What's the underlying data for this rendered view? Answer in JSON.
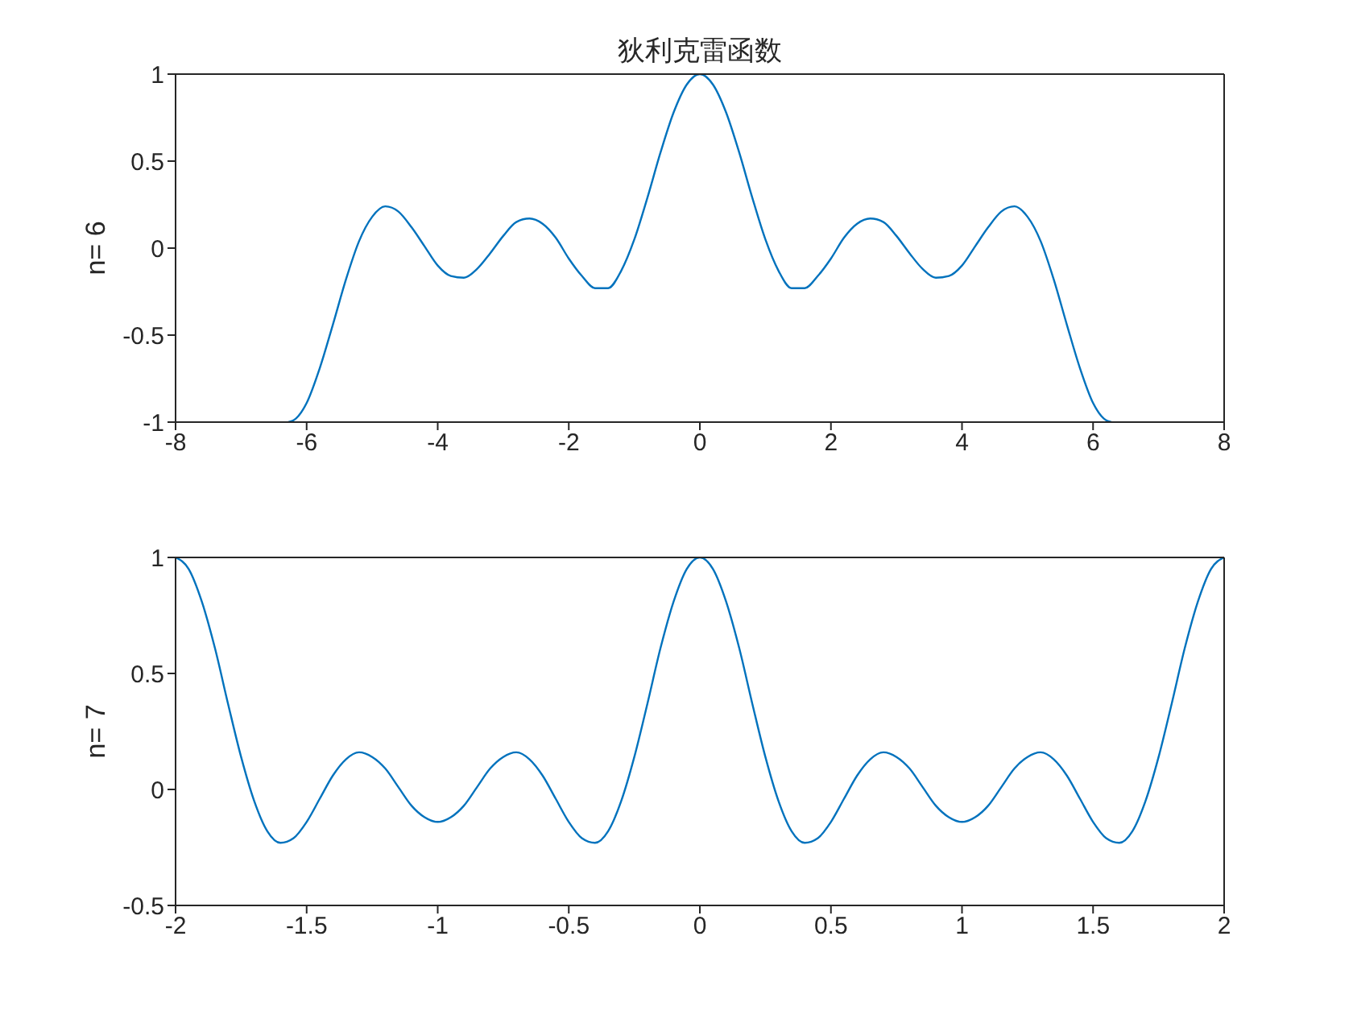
{
  "chart_data": [
    {
      "type": "line",
      "title": "狄利克雷函数",
      "ylabel": "n= 6",
      "grid": false,
      "legend": false,
      "marker": "none",
      "line_style": "solid",
      "xlim": [
        -8,
        8
      ],
      "xticks": [
        -8,
        -6,
        -4,
        -2,
        0,
        2,
        4,
        6,
        8
      ],
      "ylim": [
        -1,
        1
      ],
      "yticks": [
        -1,
        -0.5,
        0,
        0.5,
        1
      ],
      "x": [
        -6.28,
        -6.2,
        -6.0,
        -5.8,
        -5.6,
        -5.4,
        -5.2,
        -5.0,
        -4.8,
        -4.6,
        -4.4,
        -4.2,
        -4.0,
        -3.8,
        -3.6,
        -3.4,
        -3.2,
        -3.0,
        -2.8,
        -2.6,
        -2.4,
        -2.2,
        -2.0,
        -1.8,
        -1.6,
        -1.4,
        -1.2,
        -1.0,
        -0.8,
        -0.6,
        -0.4,
        -0.2,
        0,
        0.2,
        0.4,
        0.6,
        0.8,
        1.0,
        1.2,
        1.4,
        1.6,
        1.8,
        2.0,
        2.2,
        2.4,
        2.6,
        2.8,
        3.0,
        3.2,
        3.4,
        3.6,
        3.8,
        4.0,
        4.2,
        4.4,
        4.6,
        4.8,
        5.0,
        5.2,
        5.4,
        5.6,
        5.8,
        6.0,
        6.2,
        6.28
      ],
      "series": [
        {
          "color": "#0072bd",
          "values": [
            -1,
            -0.99,
            -0.89,
            -0.69,
            -0.44,
            -0.18,
            0.04,
            0.18,
            0.24,
            0.21,
            0.12,
            0.01,
            -0.1,
            -0.16,
            -0.17,
            -0.12,
            -0.03,
            0.07,
            0.15,
            0.17,
            0.14,
            0.06,
            -0.06,
            -0.16,
            -0.23,
            -0.23,
            -0.13,
            0.05,
            0.29,
            0.55,
            0.78,
            0.94,
            1,
            0.94,
            0.78,
            0.55,
            0.29,
            0.05,
            -0.13,
            -0.23,
            -0.23,
            -0.16,
            -0.06,
            0.06,
            0.14,
            0.17,
            0.15,
            0.07,
            -0.03,
            -0.12,
            -0.17,
            -0.16,
            -0.1,
            0.01,
            0.12,
            0.21,
            0.24,
            0.18,
            0.04,
            -0.18,
            -0.44,
            -0.69,
            -0.89,
            -0.99,
            -1
          ]
        }
      ]
    },
    {
      "type": "line",
      "ylabel": "n= 7",
      "grid": false,
      "legend": false,
      "marker": "none",
      "line_style": "solid",
      "xlim": [
        -2,
        2
      ],
      "xticks": [
        -2,
        -1.5,
        -1,
        -0.5,
        0,
        0.5,
        1,
        1.5,
        2
      ],
      "ylim": [
        -0.5,
        1
      ],
      "yticks": [
        -0.5,
        0,
        0.5,
        1
      ],
      "x": [
        -2,
        -1.95,
        -1.9,
        -1.85,
        -1.8,
        -1.75,
        -1.7,
        -1.65,
        -1.6,
        -1.55,
        -1.5,
        -1.45,
        -1.4,
        -1.35,
        -1.3,
        -1.25,
        -1.2,
        -1.15,
        -1.1,
        -1.05,
        -1,
        -0.95,
        -0.9,
        -0.85,
        -0.8,
        -0.75,
        -0.7,
        -0.65,
        -0.6,
        -0.55,
        -0.5,
        -0.45,
        -0.4,
        -0.35,
        -0.3,
        -0.25,
        -0.2,
        -0.15,
        -0.1,
        -0.05,
        0,
        0.05,
        0.1,
        0.15,
        0.2,
        0.25,
        0.3,
        0.35,
        0.4,
        0.45,
        0.5,
        0.55,
        0.6,
        0.65,
        0.7,
        0.75,
        0.8,
        0.85,
        0.9,
        0.95,
        1,
        1.05,
        1.1,
        1.15,
        1.2,
        1.25,
        1.3,
        1.35,
        1.4,
        1.45,
        1.5,
        1.55,
        1.6,
        1.65,
        1.7,
        1.75,
        1.8,
        1.85,
        1.9,
        1.95,
        2
      ],
      "series": [
        {
          "color": "#0072bd",
          "values": [
            1,
            0.95,
            0.81,
            0.61,
            0.37,
            0.14,
            -0.05,
            -0.18,
            -0.23,
            -0.21,
            -0.14,
            -0.04,
            0.06,
            0.13,
            0.16,
            0.14,
            0.09,
            0.01,
            -0.07,
            -0.12,
            -0.14,
            -0.12,
            -0.07,
            0.01,
            0.09,
            0.14,
            0.16,
            0.13,
            0.06,
            -0.04,
            -0.14,
            -0.21,
            -0.23,
            -0.18,
            -0.05,
            0.14,
            0.37,
            0.61,
            0.81,
            0.95,
            1,
            0.95,
            0.81,
            0.61,
            0.37,
            0.14,
            -0.05,
            -0.18,
            -0.23,
            -0.21,
            -0.14,
            -0.04,
            0.06,
            0.13,
            0.16,
            0.14,
            0.09,
            0.01,
            -0.07,
            -0.12,
            -0.14,
            -0.12,
            -0.07,
            0.01,
            0.09,
            0.14,
            0.16,
            0.13,
            0.06,
            -0.04,
            -0.14,
            -0.21,
            -0.23,
            -0.18,
            -0.05,
            0.14,
            0.37,
            0.61,
            0.81,
            0.95,
            1
          ]
        }
      ]
    }
  ]
}
